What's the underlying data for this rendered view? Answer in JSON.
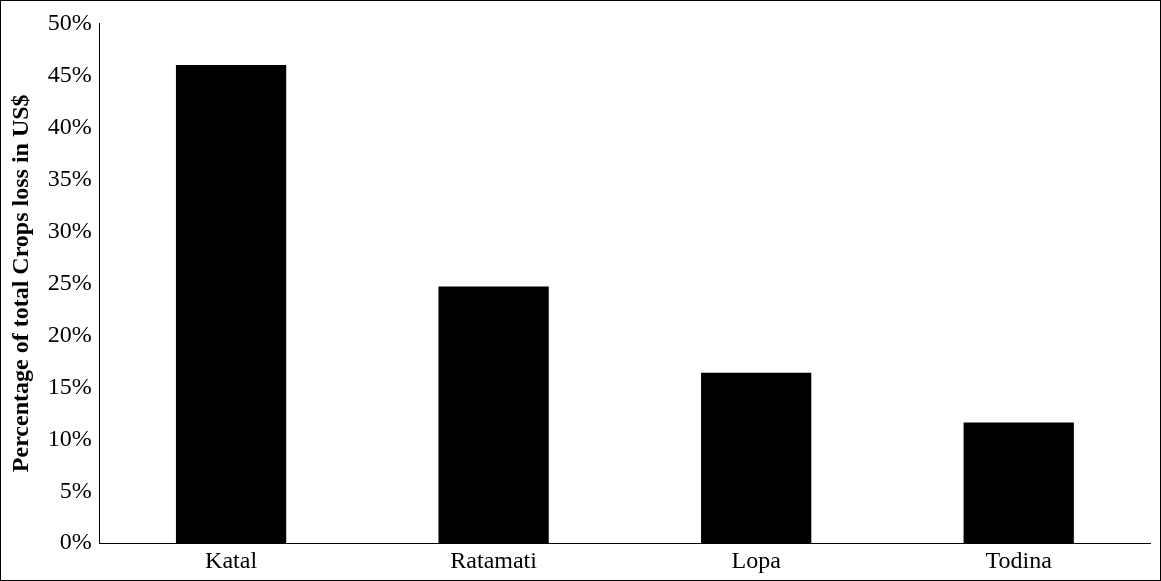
{
  "chart_data": {
    "type": "bar",
    "ylabel": "Percentage of total Crops loss in US$",
    "categories": [
      "Katal",
      "Ratamati",
      "Lopa",
      "Todina"
    ],
    "values": [
      46,
      24.7,
      16.4,
      11.6
    ],
    "color": "#000000",
    "ylim": [
      0,
      50
    ],
    "yticks": [
      {
        "value": 0,
        "label": "0%"
      },
      {
        "value": 5,
        "label": "5%"
      },
      {
        "value": 10,
        "label": "10%"
      },
      {
        "value": 15,
        "label": "15%"
      },
      {
        "value": 20,
        "label": "20%"
      },
      {
        "value": 25,
        "label": "25%"
      },
      {
        "value": 30,
        "label": "30%"
      },
      {
        "value": 35,
        "label": "35%"
      },
      {
        "value": 40,
        "label": "40%"
      },
      {
        "value": 45,
        "label": "45%"
      },
      {
        "value": 50,
        "label": "50%"
      }
    ],
    "grid": false,
    "legend": false
  }
}
